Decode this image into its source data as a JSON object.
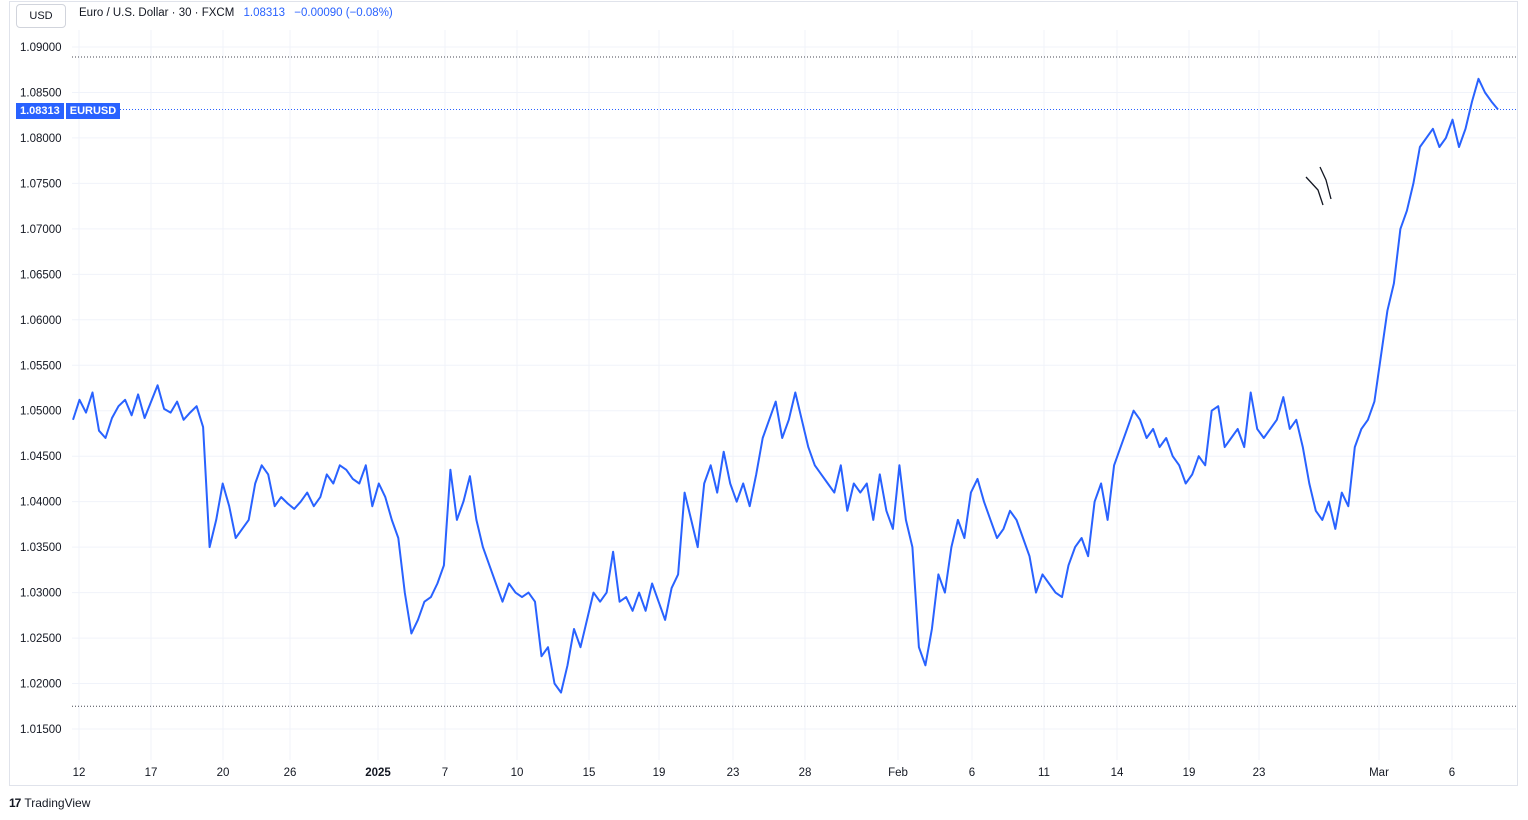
{
  "currency_button": "USD",
  "legend": {
    "symbol": "Euro / U.S. Dollar · 30 · FXCM",
    "last": "1.08313",
    "change": "−0.00090 (−0.08%)"
  },
  "price_tag": {
    "price": "1.08313",
    "symbol": "EURUSD"
  },
  "brand": {
    "logo": "17",
    "name": "TradingView"
  },
  "colors": {
    "line": "#2962ff",
    "grid": "#f0f3fa",
    "dotted": "#434651"
  },
  "chart_data": {
    "type": "line",
    "title": "",
    "ylabel": "",
    "xlabel": "",
    "ylim": [
      1.012,
      1.0935
    ],
    "y_ticks": [
      "1.09000",
      "1.08500",
      "1.08000",
      "1.07500",
      "1.07000",
      "1.06500",
      "1.06000",
      "1.05500",
      "1.05000",
      "1.04500",
      "1.04000",
      "1.03500",
      "1.03000",
      "1.02500",
      "1.02000",
      "1.01500"
    ],
    "x_ticks": [
      {
        "label": "12",
        "idx": 0
      },
      {
        "label": "17",
        "idx": 1
      },
      {
        "label": "20",
        "idx": 2
      },
      {
        "label": "26",
        "idx": 3
      },
      {
        "label": "2025",
        "idx": 4,
        "bold": true
      },
      {
        "label": "7",
        "idx": 5
      },
      {
        "label": "10",
        "idx": 6
      },
      {
        "label": "15",
        "idx": 7
      },
      {
        "label": "19",
        "idx": 8
      },
      {
        "label": "23",
        "idx": 9
      },
      {
        "label": "28",
        "idx": 10
      },
      {
        "label": "Feb",
        "idx": 11
      },
      {
        "label": "6",
        "idx": 12
      },
      {
        "label": "11",
        "idx": 13
      },
      {
        "label": "14",
        "idx": 14
      },
      {
        "label": "19",
        "idx": 15
      },
      {
        "label": "23",
        "idx": 16
      },
      {
        "label": "Mar",
        "idx": 17
      },
      {
        "label": "6",
        "idx": 18
      }
    ],
    "period_high": 1.0889,
    "period_low": 1.0175,
    "last_price": 1.08313,
    "series": [
      {
        "values": [
          1.049,
          1.0512,
          1.0498,
          1.052,
          1.0478,
          1.047,
          1.0492,
          1.0505,
          1.0512,
          1.0495,
          1.0518,
          1.0492,
          1.051,
          1.0528,
          1.0502,
          1.0498,
          1.051,
          1.049,
          1.0498,
          1.0505,
          1.0482,
          1.035,
          1.038,
          1.042,
          1.0395,
          1.036,
          1.037,
          1.038,
          1.042,
          1.044,
          1.043,
          1.0395,
          1.0405,
          1.0398,
          1.0392,
          1.04,
          1.041,
          1.0395,
          1.0405,
          1.043,
          1.042,
          1.044,
          1.0435,
          1.0425,
          1.042,
          1.044,
          1.0395,
          1.042,
          1.0405,
          1.038,
          1.036,
          1.03,
          1.0255,
          1.027,
          1.029,
          1.0295,
          1.031,
          1.033,
          1.0435,
          1.038,
          1.04,
          1.0428,
          1.038,
          1.035,
          1.033,
          1.031,
          1.029,
          1.031,
          1.03,
          1.0295,
          1.03,
          1.029,
          1.023,
          1.024,
          1.02,
          1.019,
          1.022,
          1.026,
          1.024,
          1.027,
          1.03,
          1.029,
          1.03,
          1.0345,
          1.029,
          1.0295,
          1.028,
          1.03,
          1.028,
          1.031,
          1.029,
          1.027,
          1.0305,
          1.032,
          1.041,
          1.038,
          1.035,
          1.042,
          1.044,
          1.041,
          1.0455,
          1.042,
          1.04,
          1.042,
          1.0395,
          1.043,
          1.047,
          1.049,
          1.051,
          1.047,
          1.049,
          1.052,
          1.049,
          1.046,
          1.044,
          1.043,
          1.042,
          1.041,
          1.044,
          1.039,
          1.042,
          1.041,
          1.042,
          1.038,
          1.043,
          1.039,
          1.037,
          1.044,
          1.038,
          1.035,
          1.024,
          1.022,
          1.026,
          1.032,
          1.03,
          1.035,
          1.038,
          1.036,
          1.041,
          1.0425,
          1.04,
          1.038,
          1.036,
          1.037,
          1.039,
          1.038,
          1.036,
          1.034,
          1.03,
          1.032,
          1.031,
          1.03,
          1.0295,
          1.033,
          1.035,
          1.036,
          1.034,
          1.04,
          1.042,
          1.038,
          1.044,
          1.046,
          1.048,
          1.05,
          1.049,
          1.047,
          1.048,
          1.046,
          1.047,
          1.045,
          1.044,
          1.042,
          1.043,
          1.045,
          1.044,
          1.05,
          1.0505,
          1.046,
          1.047,
          1.048,
          1.046,
          1.052,
          1.048,
          1.047,
          1.048,
          1.049,
          1.0515,
          1.048,
          1.049,
          1.046,
          1.042,
          1.039,
          1.038,
          1.04,
          1.037,
          1.041,
          1.0395,
          1.046,
          1.048,
          1.049,
          1.051,
          1.056,
          1.061,
          1.064,
          1.07,
          1.072,
          1.075,
          1.079,
          1.08,
          1.081,
          1.079,
          1.08,
          1.082,
          1.079,
          1.081,
          1.084,
          1.0865,
          1.085,
          1.084,
          1.08313
        ]
      }
    ]
  }
}
